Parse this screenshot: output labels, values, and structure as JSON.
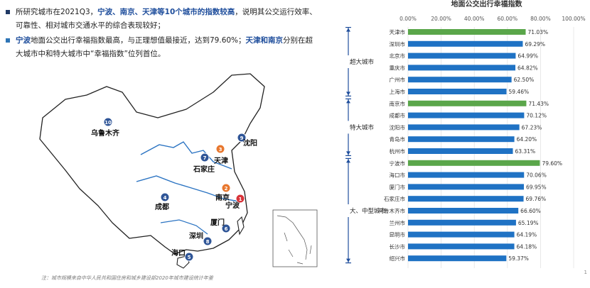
{
  "text": {
    "b1_a": "所研究城市在2021Q3，",
    "b1_hl": "宁波、南京、天津等10个城市的指数较高",
    "b1_b": "，说明其公交运行效率、可靠性、相对城市交通水平的综合表现较好；",
    "b2_hl1": "宁波",
    "b2_a": "地面公交出行幸福指数最高，与正理想值最接近，达到79.60%；",
    "b2_hl2": "天津和南京",
    "b2_b": "分别在超大城市中和特大城市中“幸福指数”位列首位。",
    "note": "注：城市规模来自中华人民共和国住房和城乡建设部2020年城市建设统计年鉴",
    "page": "1"
  },
  "colors": {
    "bar_default": "#1f72c4",
    "bar_highlight": "#5aa64a",
    "rank_orange": "#e8772e",
    "rank_red": "#d9343a",
    "rank_blue": "#2f5597",
    "bracket": "#1f4e9c"
  },
  "map_markers": [
    {
      "rank": "10",
      "city": "乌鲁木齐",
      "color": "blue"
    },
    {
      "rank": "9",
      "city": "沈阳",
      "color": "blue"
    },
    {
      "rank": "3",
      "city": "天津",
      "color": "orange"
    },
    {
      "rank": "7",
      "city": "石家庄",
      "color": "blue"
    },
    {
      "rank": "4",
      "city": "成都",
      "color": "blue"
    },
    {
      "rank": "2",
      "city": "南京",
      "color": "orange"
    },
    {
      "rank": "1",
      "city": "宁波",
      "color": "red"
    },
    {
      "rank": "6",
      "city": "厦门",
      "color": "blue"
    },
    {
      "rank": "8",
      "city": "深圳",
      "color": "blue"
    },
    {
      "rank": "5",
      "city": "海口",
      "color": "blue"
    }
  ],
  "chart_data": {
    "type": "bar",
    "orientation": "horizontal",
    "title": "地面公交出行幸福指数",
    "xlim": [
      0,
      100
    ],
    "xticks": [
      "0.00%",
      "20.00%",
      "40.00%",
      "60.00%",
      "80.00%",
      "100.00%"
    ],
    "categories": [
      "天津市",
      "深圳市",
      "北京市",
      "重庆市",
      "广州市",
      "上海市",
      "南京市",
      "成都市",
      "沈阳市",
      "青岛市",
      "杭州市",
      "宁波市",
      "海口市",
      "厦门市",
      "石家庄市",
      "乌鲁木齐市",
      "兰州市",
      "昆明市",
      "长沙市",
      "绍兴市"
    ],
    "values": [
      71.03,
      69.29,
      64.99,
      64.82,
      62.5,
      59.46,
      71.43,
      70.12,
      67.23,
      64.2,
      63.31,
      79.6,
      70.06,
      69.95,
      69.76,
      66.6,
      65.19,
      64.19,
      64.18,
      59.37
    ],
    "value_labels": [
      "71.03%",
      "69.29%",
      "64.99%",
      "64.82%",
      "62.50%",
      "59.46%",
      "71.43%",
      "70.12%",
      "67.23%",
      "64.20%",
      "63.31%",
      "79.60%",
      "70.06%",
      "69.95%",
      "69.76%",
      "66.60%",
      "65.19%",
      "64.19%",
      "64.18%",
      "59.37%"
    ],
    "highlighted": [
      true,
      false,
      false,
      false,
      false,
      false,
      true,
      false,
      false,
      false,
      false,
      true,
      false,
      false,
      false,
      false,
      false,
      false,
      false,
      false
    ],
    "groups": [
      {
        "label": "超大城市",
        "count": 6
      },
      {
        "label": "特大城市",
        "count": 5
      },
      {
        "label": "大、中型城市",
        "count": 9
      }
    ],
    "grid": true,
    "legend": "none"
  }
}
